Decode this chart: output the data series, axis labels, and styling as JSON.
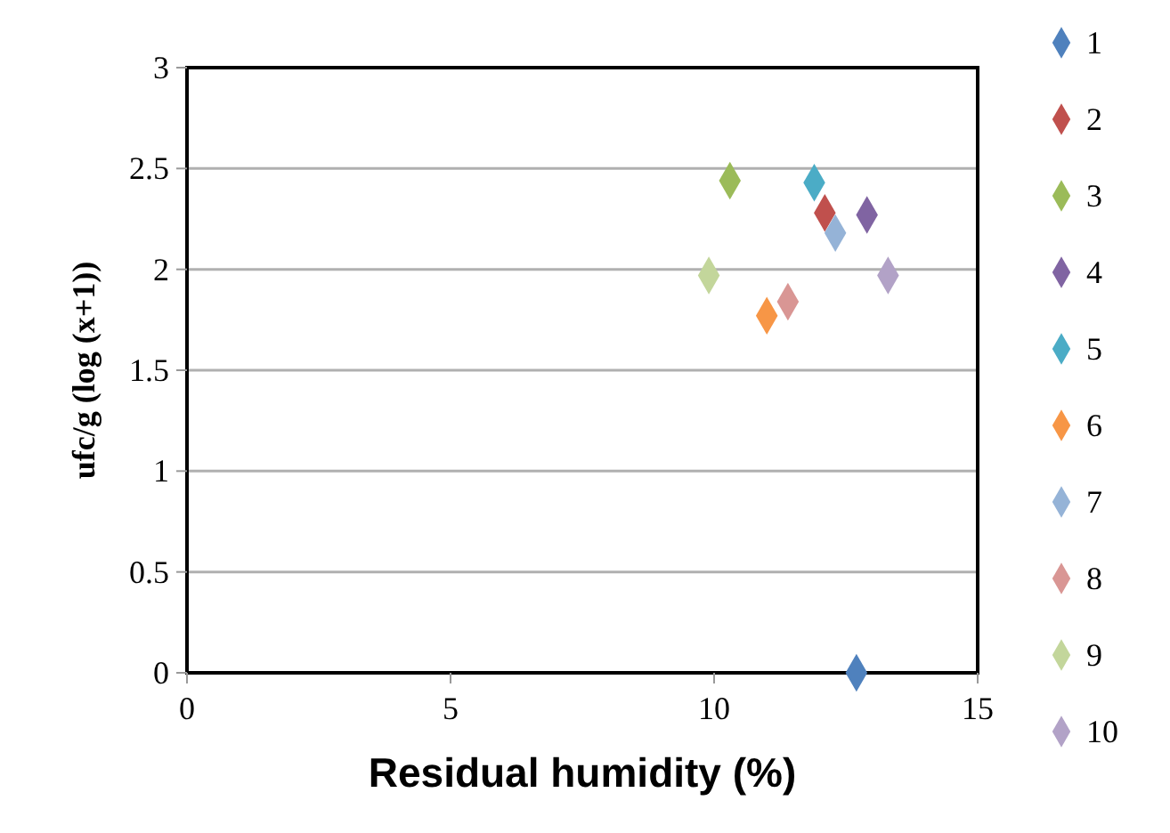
{
  "chart_data": {
    "type": "scatter",
    "xlabel": "Residual humidity (%)",
    "ylabel": "ufc/g  (log (x+1))",
    "xlim": [
      0,
      15
    ],
    "xticks": [
      0,
      5,
      10,
      15
    ],
    "ylim": [
      0,
      3
    ],
    "yticks": [
      0,
      0.5,
      1,
      1.5,
      2,
      2.5,
      3
    ],
    "grid": "y",
    "legend": "right",
    "marker": "diamond",
    "series": [
      {
        "name": "1",
        "color": "#4f81bd",
        "x": [
          12.7
        ],
        "values": [
          0
        ]
      },
      {
        "name": "2",
        "color": "#c0504d",
        "x": [
          12.1
        ],
        "values": [
          2.28
        ]
      },
      {
        "name": "3",
        "color": "#9bbb59",
        "x": [
          10.3
        ],
        "values": [
          2.44
        ]
      },
      {
        "name": "4",
        "color": "#8064a2",
        "x": [
          12.9
        ],
        "values": [
          2.27
        ]
      },
      {
        "name": "5",
        "color": "#4bacc6",
        "x": [
          11.9
        ],
        "values": [
          2.43
        ]
      },
      {
        "name": "6",
        "color": "#f79646",
        "x": [
          11.0
        ],
        "values": [
          1.77
        ]
      },
      {
        "name": "7",
        "color": "#95b3d7",
        "x": [
          12.3
        ],
        "values": [
          2.18
        ]
      },
      {
        "name": "8",
        "color": "#d99694",
        "x": [
          11.4
        ],
        "values": [
          1.84
        ]
      },
      {
        "name": "9",
        "color": "#c3d69b",
        "x": [
          9.9
        ],
        "values": [
          1.97
        ]
      },
      {
        "name": "10",
        "color": "#b2a2c7",
        "x": [
          13.3
        ],
        "values": [
          1.97
        ]
      }
    ]
  }
}
